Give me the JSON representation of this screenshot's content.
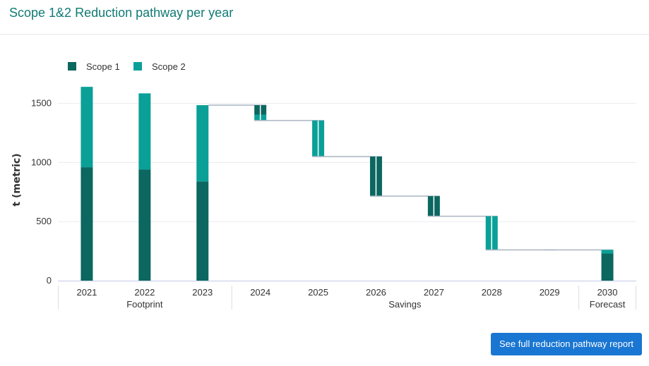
{
  "header": {
    "title": "Scope 1&2 Reduction pathway per year"
  },
  "actions": {
    "report_button": "See full reduction pathway report"
  },
  "colors": {
    "scope1": "#0b6760",
    "scope2": "#0aa098",
    "connector": "#a9b4c2",
    "title": "#0f7b74",
    "button": "#1976d2"
  },
  "chart_data": {
    "type": "bar",
    "subtype": "stacked-waterfall",
    "ylabel": "t (metric)",
    "ylim": [
      0,
      1750
    ],
    "yticks": [
      0,
      500,
      1000,
      1500
    ],
    "grid": true,
    "legend": {
      "position": "top-left",
      "entries": [
        "Scope 1",
        "Scope 2"
      ]
    },
    "categories": [
      "2021",
      "2022",
      "2023",
      "2024",
      "2025",
      "2026",
      "2027",
      "2028",
      "2029",
      "2030"
    ],
    "groups": [
      {
        "label": "Footprint",
        "categories": [
          "2021",
          "2022",
          "2023"
        ]
      },
      {
        "label": "Savings",
        "categories": [
          "2024",
          "2025",
          "2026",
          "2027",
          "2028",
          "2029"
        ]
      },
      {
        "label": "Forecast",
        "categories": [
          "2030"
        ]
      }
    ],
    "footprint": [
      {
        "year": "2021",
        "scope1": 960,
        "scope2": 680
      },
      {
        "year": "2022",
        "scope1": 940,
        "scope2": 645
      },
      {
        "year": "2023",
        "scope1": 840,
        "scope2": 645
      }
    ],
    "savings": [
      {
        "year": "2024",
        "from": 1485,
        "to": 1355,
        "scope1": 80,
        "scope2": 50
      },
      {
        "year": "2025",
        "from": 1355,
        "to": 1050,
        "scope1": 0,
        "scope2": 305
      },
      {
        "year": "2026",
        "from": 1050,
        "to": 715,
        "scope1": 335,
        "scope2": 0
      },
      {
        "year": "2027",
        "from": 715,
        "to": 545,
        "scope1": 170,
        "scope2": 0
      },
      {
        "year": "2028",
        "from": 545,
        "to": 260,
        "scope1": 0,
        "scope2": 285
      },
      {
        "year": "2029",
        "from": 260,
        "to": 260,
        "scope1": 0,
        "scope2": 0
      }
    ],
    "forecast": [
      {
        "year": "2030",
        "scope1": 230,
        "scope2": 30
      }
    ]
  }
}
